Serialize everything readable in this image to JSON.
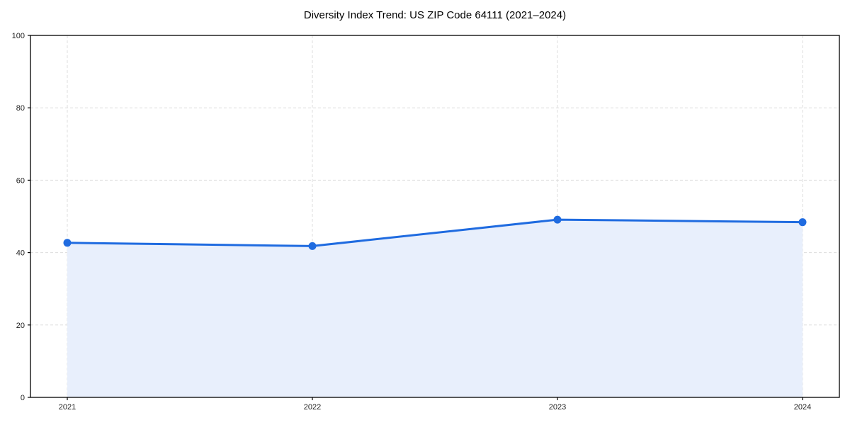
{
  "chart_data": {
    "type": "line",
    "title": "Diversity Index Trend: US ZIP Code 64111 (2021–2024)",
    "categories": [
      "2021",
      "2022",
      "2023",
      "2024"
    ],
    "series": [
      {
        "name": "Diversity Index",
        "values": [
          42.7,
          41.8,
          49.1,
          48.4
        ]
      }
    ],
    "xlabel": "",
    "ylabel": "",
    "ylim": [
      0,
      100
    ],
    "yticks": [
      0,
      20,
      40,
      60,
      80,
      100
    ],
    "grid": true,
    "grid_style": "dashed",
    "legend": "none",
    "area_fill_under_line": true,
    "style": {
      "line_color": "#1f6be0",
      "marker_color": "#1f6be0",
      "area_fill": "#e8effc",
      "grid_color": "#dddddd",
      "axis_color": "#000000",
      "tick_label_color": "#222222",
      "background": "#ffffff"
    }
  }
}
